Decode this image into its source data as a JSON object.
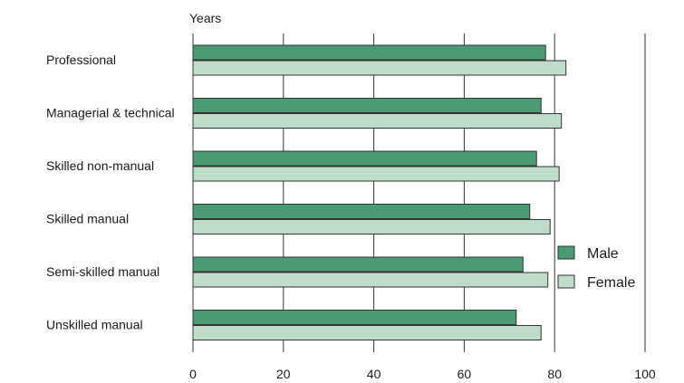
{
  "chart_data": {
    "type": "bar",
    "orientation": "horizontal",
    "unit_label": "Years",
    "categories": [
      "Professional",
      "Managerial & technical",
      "Skilled non-manual",
      "Skilled manual",
      "Semi-skilled manual",
      "Unskilled manual"
    ],
    "series": [
      {
        "name": "Male",
        "color": "#4a9a72",
        "values": [
          78.0,
          77.0,
          76.0,
          74.5,
          73.0,
          71.5
        ]
      },
      {
        "name": "Female",
        "color": "#bfdbc9",
        "values": [
          82.5,
          81.5,
          81.0,
          79.0,
          78.5,
          77.0
        ]
      }
    ],
    "xlim": [
      0,
      100
    ],
    "xticks": [
      0,
      20,
      40,
      60,
      80,
      100
    ],
    "grid": true,
    "legend_position": "right"
  }
}
